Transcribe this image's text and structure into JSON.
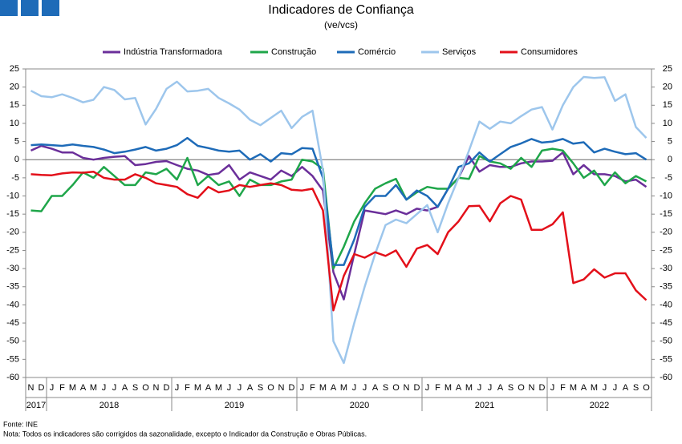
{
  "chart_data": {
    "type": "line",
    "title": "Indicadores de Confiança",
    "subtitle": "(ve/vcs)",
    "categories": [
      "N",
      "D",
      "J",
      "F",
      "M",
      "A",
      "M",
      "J",
      "J",
      "A",
      "S",
      "O",
      "N",
      "D",
      "J",
      "F",
      "M",
      "A",
      "M",
      "J",
      "J",
      "A",
      "S",
      "O",
      "N",
      "D",
      "J",
      "F",
      "M",
      "A",
      "M",
      "J",
      "J",
      "A",
      "S",
      "O",
      "N",
      "D",
      "J",
      "F",
      "M",
      "A",
      "M",
      "J",
      "J",
      "A",
      "S",
      "O",
      "N",
      "D",
      "J",
      "F",
      "M",
      "A",
      "M",
      "J",
      "J",
      "A",
      "S",
      "O"
    ],
    "category_years": [
      "2017",
      "2017",
      "2018",
      "2018",
      "2018",
      "2018",
      "2018",
      "2018",
      "2018",
      "2018",
      "2018",
      "2018",
      "2018",
      "2018",
      "2019",
      "2019",
      "2019",
      "2019",
      "2019",
      "2019",
      "2019",
      "2019",
      "2019",
      "2019",
      "2019",
      "2019",
      "2020",
      "2020",
      "2020",
      "2020",
      "2020",
      "2020",
      "2020",
      "2020",
      "2020",
      "2020",
      "2020",
      "2020",
      "2021",
      "2021",
      "2021",
      "2021",
      "2021",
      "2021",
      "2021",
      "2021",
      "2021",
      "2021",
      "2021",
      "2021",
      "2022",
      "2022",
      "2022",
      "2022",
      "2022",
      "2022",
      "2022",
      "2022",
      "2022",
      "2022"
    ],
    "series": [
      {
        "name": "Indústria Transformadora",
        "color": "#6b2f9a",
        "values": [
          2.5,
          3.8,
          3,
          2,
          2,
          0.5,
          0,
          0.5,
          0.8,
          1,
          -1.5,
          -1.2,
          -0.6,
          -0.4,
          -1.5,
          -2.5,
          -3,
          -4.2,
          -3.8,
          -1.5,
          -5.5,
          -3.5,
          -4.5,
          -5.5,
          -3,
          -4.5,
          -2,
          -4.5,
          -8.5,
          -31,
          -38.5,
          -26,
          -14,
          -14.5,
          -15,
          -14,
          -15,
          -13.5,
          -14,
          -13,
          -8,
          -5,
          1,
          -3.3,
          -1.5,
          -2,
          -2,
          -1,
          -0.5,
          -0.5,
          -0.3,
          2,
          -4,
          -1.5,
          -4,
          -4,
          -4.5,
          -6,
          -5.5,
          -7.5
        ]
      },
      {
        "name": "Construção",
        "color": "#1fa64a",
        "values": [
          -14,
          -14.2,
          -10,
          -10,
          -7,
          -3.5,
          -5,
          -2,
          -4.5,
          -7,
          -7,
          -3.5,
          -4,
          -2.5,
          -5.5,
          0.5,
          -7,
          -4.5,
          -7,
          -6,
          -10,
          -5.5,
          -7,
          -7,
          -6,
          -5.5,
          0,
          -0.5,
          -2.5,
          -30,
          -24,
          -17,
          -12,
          -8,
          -6.5,
          -5.3,
          -11,
          -9,
          -7.5,
          -8,
          -8,
          -5,
          -5.3,
          1,
          -0.5,
          -1,
          -2.5,
          0.5,
          -2,
          2.5,
          3,
          2.5,
          -1,
          -5,
          -3,
          -7,
          -3.5,
          -6.5,
          -4.5,
          -6
        ]
      },
      {
        "name": "Comércio",
        "color": "#1e6bb8",
        "values": [
          4,
          4.2,
          4,
          3.8,
          4.2,
          3.8,
          3.5,
          2.8,
          1.8,
          2.2,
          2.8,
          3.5,
          2.5,
          3,
          4,
          6,
          3.8,
          3.2,
          2.5,
          2.2,
          2.5,
          0,
          1.5,
          -0.5,
          1.8,
          1.5,
          3.2,
          3,
          -5,
          -29,
          -29,
          -22,
          -13,
          -10,
          -10,
          -7,
          -11,
          -8.5,
          -10,
          -13,
          -8,
          -2,
          -1,
          2,
          -0.5,
          1.5,
          3.5,
          4.5,
          5.7,
          4.7,
          5,
          5.7,
          4.4,
          4.8,
          2,
          3,
          2.2,
          1.5,
          1.8,
          0
        ]
      },
      {
        "name": "Serviços",
        "color": "#9dc6ec",
        "values": [
          19,
          17.5,
          17.2,
          18,
          17,
          15.8,
          16.5,
          20,
          19.2,
          16.6,
          17,
          9.7,
          14,
          19.5,
          21.5,
          18.8,
          19,
          19.5,
          17,
          15.5,
          13.8,
          11,
          9.5,
          11.5,
          13.5,
          8.7,
          11.8,
          13.5,
          -3,
          -50,
          -56,
          -45,
          -35,
          -26,
          -18,
          -16.5,
          -17.5,
          -15,
          -12.5,
          -20,
          -12,
          -5,
          2.5,
          10.5,
          8.5,
          10.5,
          10,
          12,
          13.8,
          14.5,
          8.3,
          15,
          20,
          22.8,
          22.5,
          22.7,
          16.2,
          18,
          9,
          6
        ]
      },
      {
        "name": "Consumidores",
        "color": "#e3101a",
        "values": [
          -4,
          -4.2,
          -4.3,
          -3.8,
          -3.5,
          -3.6,
          -3.3,
          -5,
          -5.5,
          -5.5,
          -4,
          -5,
          -6.5,
          -7,
          -7.5,
          -9.5,
          -10.5,
          -7.5,
          -9,
          -8.5,
          -7,
          -7.5,
          -7,
          -6.5,
          -7,
          -8.3,
          -8.5,
          -8,
          -14,
          -41.5,
          -32,
          -26,
          -27,
          -25.5,
          -26.5,
          -25,
          -29.5,
          -24.5,
          -23.5,
          -26,
          -20,
          -17,
          -12.8,
          -12.7,
          -17,
          -12,
          -10,
          -11,
          -19.3,
          -19.3,
          -17.8,
          -14.5,
          -34,
          -33,
          -30.2,
          -32.5,
          -31.3,
          -31.3,
          -36,
          -38.7
        ]
      }
    ],
    "ylim": [
      -60,
      25
    ],
    "yticks": [
      -60,
      -55,
      -50,
      -45,
      -40,
      -35,
      -30,
      -25,
      -20,
      -15,
      -10,
      -5,
      0,
      5,
      10,
      15,
      20,
      25
    ],
    "y2lim": [
      -60,
      25
    ],
    "y2ticks": [
      -60,
      -55,
      -50,
      -45,
      -40,
      -35,
      -30,
      -25,
      -20,
      -15,
      -10,
      -5,
      0,
      5,
      10,
      15,
      20,
      25
    ],
    "source": "Fonte: INE",
    "note": "Nota: Todos os indicadores são corrigidos da sazonalidade, excepto o Indicador da Construção e Obras Públicas."
  }
}
